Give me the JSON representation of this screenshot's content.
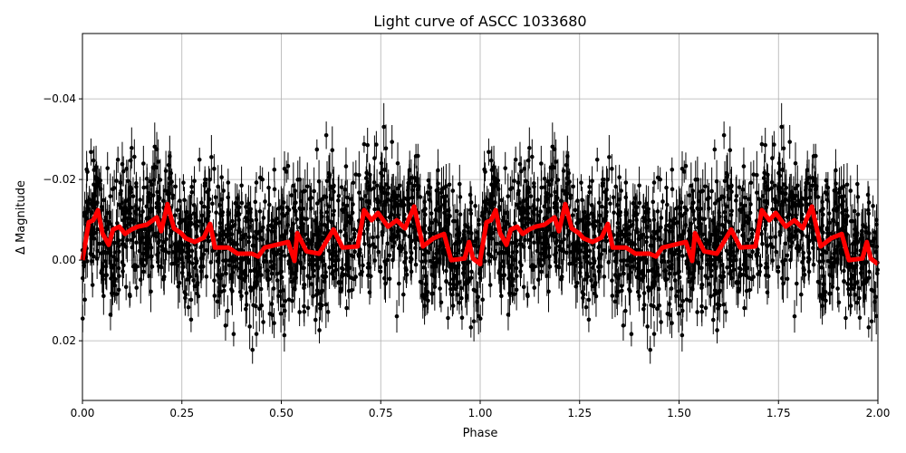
{
  "chart_data": {
    "type": "scatter",
    "title": "Light curve of ASCC 1033680",
    "xlabel": "Phase",
    "ylabel": "Δ Magnitude",
    "xlim": [
      0,
      2
    ],
    "ylim": [
      0.0348,
      -0.0562
    ],
    "y_inverted": true,
    "grid": true,
    "xticks": [
      "0.00",
      "0.25",
      "0.50",
      "0.75",
      "1.00",
      "1.25",
      "1.50",
      "1.75",
      "2.00"
    ],
    "yticks": [
      "−0.04",
      "−0.02",
      "0.00",
      "0.02"
    ],
    "xtick_values": [
      0,
      0.25,
      0.5,
      0.75,
      1,
      1.25,
      1.5,
      1.75,
      2
    ],
    "ytick_values": [
      -0.04,
      -0.02,
      0,
      0.02
    ],
    "points_color": "#000000",
    "model_color": "#ff0000",
    "model_curve": {
      "phase": [
        0,
        0.016,
        0.027,
        0.039,
        0.05,
        0.066,
        0.077,
        0.093,
        0.107,
        0.123,
        0.139,
        0.162,
        0.187,
        0.198,
        0.214,
        0.23,
        0.248,
        0.26,
        0.282,
        0.305,
        0.321,
        0.333,
        0.367,
        0.39,
        0.426,
        0.442,
        0.458,
        0.517,
        0.533,
        0.54,
        0.563,
        0.595,
        0.631,
        0.654,
        0.692,
        0.708,
        0.727,
        0.743,
        0.768,
        0.79,
        0.811,
        0.834,
        0.856,
        0.882,
        0.909,
        0.927,
        0.961,
        0.972,
        0.982,
        1.0
      ],
      "delta_mag": [
        0.0,
        -0.0094,
        -0.0099,
        -0.0124,
        -0.0067,
        -0.0038,
        -0.0076,
        -0.0083,
        -0.0065,
        -0.0076,
        -0.0083,
        -0.0088,
        -0.0106,
        -0.0072,
        -0.0139,
        -0.0079,
        -0.0067,
        -0.0054,
        -0.0045,
        -0.0056,
        -0.009,
        -0.0031,
        -0.0031,
        -0.0016,
        -0.0016,
        -0.0009,
        -0.0031,
        -0.0045,
        0.0002,
        -0.0067,
        -0.0022,
        -0.0016,
        -0.0076,
        -0.0031,
        -0.0034,
        -0.0124,
        -0.0099,
        -0.0117,
        -0.0083,
        -0.0099,
        -0.0079,
        -0.0133,
        -0.0034,
        -0.0054,
        -0.0065,
        0.0,
        -0.0004,
        -0.0045,
        -0.0004,
        0.001
      ]
    }
  }
}
